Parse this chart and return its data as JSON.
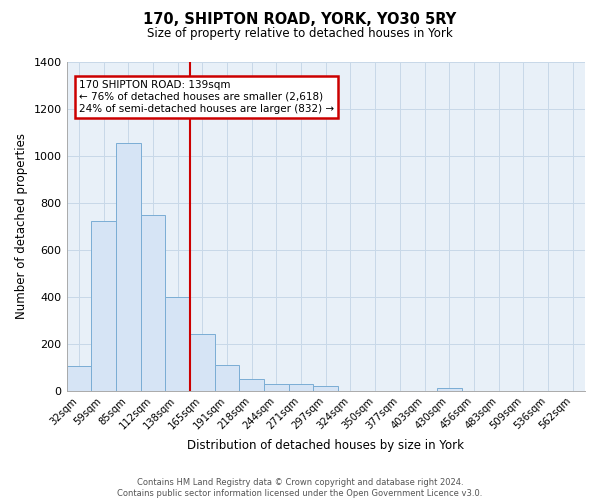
{
  "title": "170, SHIPTON ROAD, YORK, YO30 5RY",
  "subtitle": "Size of property relative to detached houses in York",
  "xlabel": "Distribution of detached houses by size in York",
  "ylabel": "Number of detached properties",
  "bar_labels": [
    "32sqm",
    "59sqm",
    "85sqm",
    "112sqm",
    "138sqm",
    "165sqm",
    "191sqm",
    "218sqm",
    "244sqm",
    "271sqm",
    "297sqm",
    "324sqm",
    "350sqm",
    "377sqm",
    "403sqm",
    "430sqm",
    "456sqm",
    "483sqm",
    "509sqm",
    "536sqm",
    "562sqm"
  ],
  "bar_values": [
    107,
    720,
    1052,
    748,
    400,
    243,
    110,
    48,
    28,
    28,
    20,
    0,
    0,
    0,
    0,
    12,
    0,
    0,
    0,
    0,
    0
  ],
  "bar_color": "#d6e4f5",
  "bar_edge_color": "#7aadd4",
  "highlight_line_index": 4,
  "highlight_color": "#cc0000",
  "annotation_line1": "170 SHIPTON ROAD: 139sqm",
  "annotation_line2": "← 76% of detached houses are smaller (2,618)",
  "annotation_line3": "24% of semi-detached houses are larger (832) →",
  "ylim": [
    0,
    1400
  ],
  "yticks": [
    0,
    200,
    400,
    600,
    800,
    1000,
    1200,
    1400
  ],
  "footer_line1": "Contains HM Land Registry data © Crown copyright and database right 2024.",
  "footer_line2": "Contains public sector information licensed under the Open Government Licence v3.0.",
  "grid_color": "#c8d8e8",
  "bg_color": "#e8f0f8"
}
